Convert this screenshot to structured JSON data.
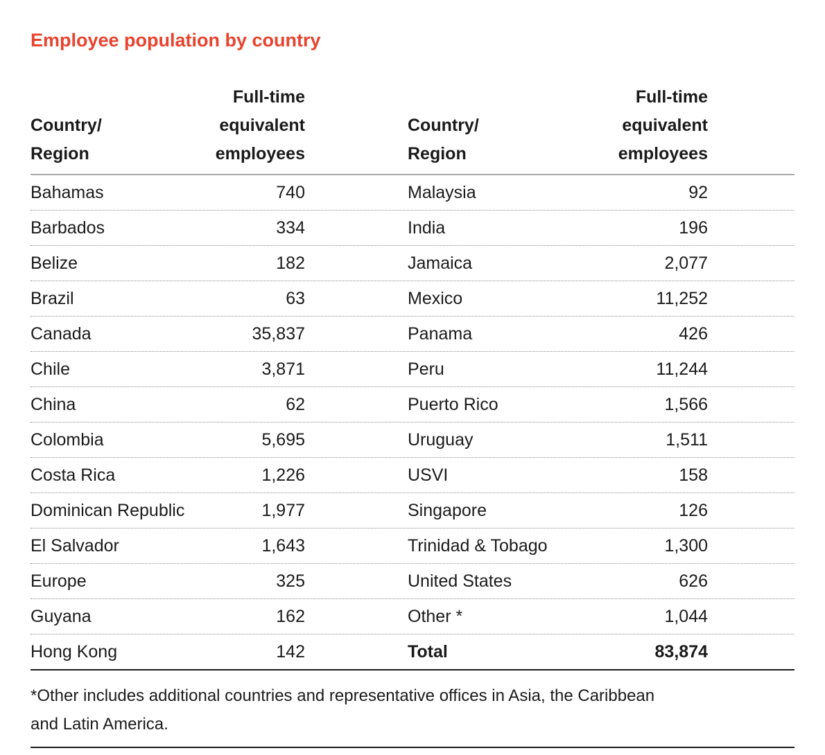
{
  "title": "Employee population by country",
  "accent_color": "#e8432e",
  "headers": {
    "country_lines": [
      "Country/",
      "Region"
    ],
    "fte_lines": [
      "Full-time",
      "equivalent",
      "employees"
    ]
  },
  "rows": [
    {
      "left": {
        "label": "Bahamas",
        "value": "740"
      },
      "right": {
        "label": "Malaysia",
        "value": "92"
      }
    },
    {
      "left": {
        "label": "Barbados",
        "value": "334"
      },
      "right": {
        "label": "India",
        "value": "196"
      }
    },
    {
      "left": {
        "label": "Belize",
        "value": "182"
      },
      "right": {
        "label": "Jamaica",
        "value": "2,077"
      }
    },
    {
      "left": {
        "label": "Brazil",
        "value": "63"
      },
      "right": {
        "label": "Mexico",
        "value": "11,252"
      }
    },
    {
      "left": {
        "label": "Canada",
        "value": "35,837"
      },
      "right": {
        "label": "Panama",
        "value": "426"
      }
    },
    {
      "left": {
        "label": "Chile",
        "value": "3,871"
      },
      "right": {
        "label": "Peru",
        "value": "11,244"
      }
    },
    {
      "left": {
        "label": "China",
        "value": "62"
      },
      "right": {
        "label": "Puerto Rico",
        "value": "1,566"
      }
    },
    {
      "left": {
        "label": "Colombia",
        "value": "5,695"
      },
      "right": {
        "label": "Uruguay",
        "value": "1,511"
      }
    },
    {
      "left": {
        "label": "Costa Rica",
        "value": "1,226"
      },
      "right": {
        "label": "USVI",
        "value": "158"
      }
    },
    {
      "left": {
        "label": "Dominican Republic",
        "value": "1,977"
      },
      "right": {
        "label": "Singapore",
        "value": "126"
      }
    },
    {
      "left": {
        "label": "El Salvador",
        "value": "1,643"
      },
      "right": {
        "label": "Trinidad & Tobago",
        "value": "1,300"
      }
    },
    {
      "left": {
        "label": "Europe",
        "value": "325"
      },
      "right": {
        "label": "United States",
        "value": "626"
      }
    },
    {
      "left": {
        "label": "Guyana",
        "value": "162"
      },
      "right": {
        "label": "Other *",
        "value": "1,044"
      }
    },
    {
      "left": {
        "label": "Hong Kong",
        "value": "142"
      },
      "right": {
        "label": "Total",
        "value": "83,874",
        "bold": true
      }
    }
  ],
  "footnote": {
    "line1": "*Other includes additional countries and representative offices in Asia, the Caribbean",
    "line2": "and Latin America."
  },
  "chart_data": {
    "type": "table",
    "title": "Employee population by country",
    "columns": [
      "Country/Region",
      "Full-time equivalent employees"
    ],
    "records": [
      [
        "Bahamas",
        740
      ],
      [
        "Barbados",
        334
      ],
      [
        "Belize",
        182
      ],
      [
        "Brazil",
        63
      ],
      [
        "Canada",
        35837
      ],
      [
        "Chile",
        3871
      ],
      [
        "China",
        62
      ],
      [
        "Colombia",
        5695
      ],
      [
        "Costa Rica",
        1226
      ],
      [
        "Dominican Republic",
        1977
      ],
      [
        "El Salvador",
        1643
      ],
      [
        "Europe",
        325
      ],
      [
        "Guyana",
        162
      ],
      [
        "Hong Kong",
        142
      ],
      [
        "Malaysia",
        92
      ],
      [
        "India",
        196
      ],
      [
        "Jamaica",
        2077
      ],
      [
        "Mexico",
        11252
      ],
      [
        "Panama",
        426
      ],
      [
        "Peru",
        11244
      ],
      [
        "Puerto Rico",
        1566
      ],
      [
        "Uruguay",
        1511
      ],
      [
        "USVI",
        158
      ],
      [
        "Singapore",
        126
      ],
      [
        "Trinidad & Tobago",
        1300
      ],
      [
        "United States",
        626
      ],
      [
        "Other *",
        1044
      ]
    ],
    "total_label": "Total",
    "total_value": 83874,
    "footnote": "*Other includes additional countries and representative offices in Asia, the Caribbean and Latin America."
  }
}
